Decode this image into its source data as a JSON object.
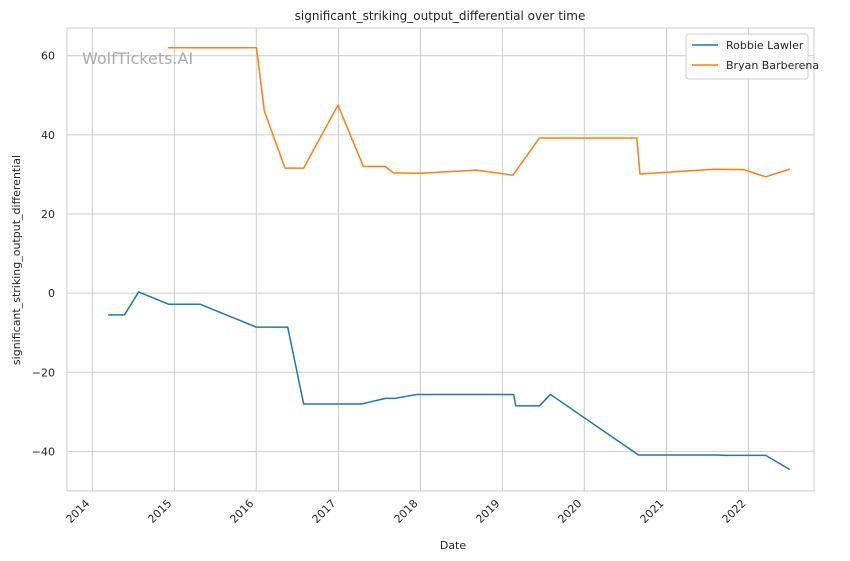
{
  "chart_data": {
    "type": "line",
    "title": "significant_striking_output_differential over time",
    "xlabel": "Date",
    "ylabel": "significant_striking_output_differential",
    "watermark": "WolfTickets.AI",
    "xlim": [
      "2013-09-10",
      "2022-10-20"
    ],
    "ylim": [
      -50,
      67
    ],
    "x_ticks": [
      "2014-01-01",
      "2015-01-01",
      "2016-01-01",
      "2017-01-01",
      "2018-01-01",
      "2019-01-01",
      "2020-01-01",
      "2021-01-01",
      "2022-01-01"
    ],
    "x_tick_labels": [
      "2014",
      "2015",
      "2016",
      "2017",
      "2018",
      "2019",
      "2020",
      "2021",
      "2022"
    ],
    "y_ticks": [
      -40,
      -20,
      0,
      20,
      40,
      60
    ],
    "y_tick_labels": [
      "−40",
      "−20",
      "0",
      "20",
      "40",
      "60"
    ],
    "grid": true,
    "legend_position": "top-right",
    "series": [
      {
        "name": "Robbie Lawler",
        "color": "#1f77b4",
        "points": [
          [
            "2014-03-15",
            -5.5
          ],
          [
            "2014-05-24",
            -5.5
          ],
          [
            "2014-07-26",
            0.3
          ],
          [
            "2014-12-06",
            -2.8
          ],
          [
            "2015-04-25",
            -2.8
          ],
          [
            "2016-01-02",
            -8.6
          ],
          [
            "2016-05-20",
            -8.6
          ],
          [
            "2016-07-30",
            -28.0
          ],
          [
            "2017-04-15",
            -28.0
          ],
          [
            "2017-07-29",
            -26.6
          ],
          [
            "2017-09-10",
            -26.6
          ],
          [
            "2017-12-16",
            -25.6
          ],
          [
            "2018-08-25",
            -25.6
          ],
          [
            "2019-02-20",
            -25.6
          ],
          [
            "2019-03-02",
            -28.5
          ],
          [
            "2019-06-15",
            -28.5
          ],
          [
            "2019-08-03",
            -25.6
          ],
          [
            "2020-08-29",
            -40.9
          ],
          [
            "2021-08-07",
            -40.9
          ],
          [
            "2021-09-25",
            -41.0
          ],
          [
            "2022-03-19",
            -41.0
          ],
          [
            "2022-07-02",
            -44.5
          ]
        ]
      },
      {
        "name": "Bryan Barberena",
        "color": "#ff7f0e",
        "points": [
          [
            "2014-12-06",
            62.0
          ],
          [
            "2016-01-02",
            62.0
          ],
          [
            "2016-02-06",
            46.0
          ],
          [
            "2016-05-08",
            31.6
          ],
          [
            "2016-07-30",
            31.6
          ],
          [
            "2016-12-30",
            47.5
          ],
          [
            "2017-04-22",
            32.0
          ],
          [
            "2017-07-29",
            32.0
          ],
          [
            "2017-09-02",
            30.4
          ],
          [
            "2017-12-30",
            30.3
          ],
          [
            "2018-09-08",
            31.1
          ],
          [
            "2019-02-17",
            29.8
          ],
          [
            "2019-06-15",
            39.2
          ],
          [
            "2020-08-22",
            39.2
          ],
          [
            "2020-09-05",
            30.1
          ],
          [
            "2021-07-31",
            31.3
          ],
          [
            "2021-12-11",
            31.2
          ],
          [
            "2022-03-19",
            29.4
          ],
          [
            "2022-07-02",
            31.3
          ]
        ]
      }
    ]
  }
}
